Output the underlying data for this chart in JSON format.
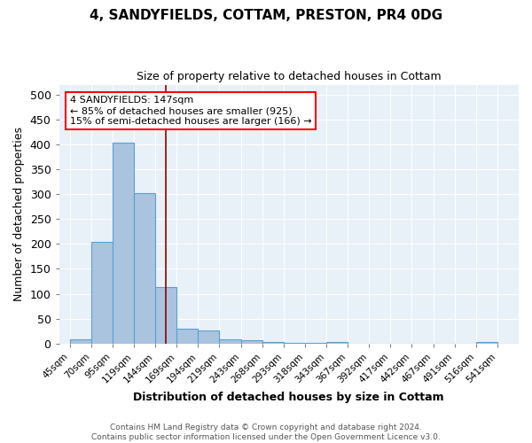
{
  "title": "4, SANDYFIELDS, COTTAM, PRESTON, PR4 0DG",
  "subtitle": "Size of property relative to detached houses in Cottam",
  "xlabel": "Distribution of detached houses by size in Cottam",
  "ylabel": "Number of detached properties",
  "footer_line1": "Contains HM Land Registry data © Crown copyright and database right 2024.",
  "footer_line2": "Contains public sector information licensed under the Open Government Licence v3.0.",
  "bin_labels": [
    "45sqm",
    "70sqm",
    "95sqm",
    "119sqm",
    "144sqm",
    "169sqm",
    "194sqm",
    "219sqm",
    "243sqm",
    "268sqm",
    "293sqm",
    "318sqm",
    "343sqm",
    "367sqm",
    "392sqm",
    "417sqm",
    "442sqm",
    "467sqm",
    "491sqm",
    "516sqm",
    "541sqm"
  ],
  "bar_heights": [
    8,
    204,
    403,
    303,
    113,
    30,
    27,
    9,
    6,
    3,
    1,
    1,
    4,
    0,
    0,
    0,
    0,
    0,
    0,
    4,
    0
  ],
  "bar_color": "#aac4e0",
  "bar_edgecolor": "#5a9fd4",
  "bg_color": "#e8f0f8",
  "red_line_bin": 4,
  "annotation_text": "4 SANDYFIELDS: 147sqm\n← 85% of detached houses are smaller (925)\n15% of semi-detached houses are larger (166) →",
  "ylim": [
    0,
    520
  ],
  "yticks": [
    0,
    50,
    100,
    150,
    200,
    250,
    300,
    350,
    400,
    450,
    500
  ]
}
